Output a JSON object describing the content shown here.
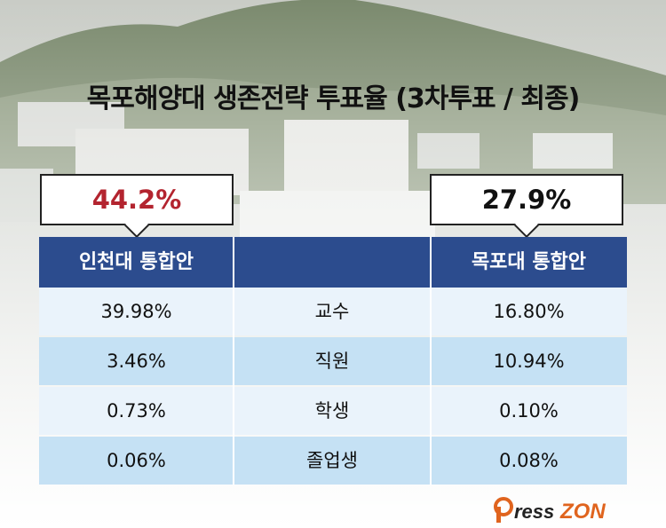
{
  "title": "목포해양대 생존전략 투표율 (3차투표 / 최종)",
  "chart_data": {
    "type": "table",
    "headline_values": {
      "incheon_total": "44.2%",
      "mokpo_total": "27.9%"
    },
    "columns": [
      "인천대 통합안",
      "",
      "목포대 통합안"
    ],
    "rows": [
      {
        "category": "교수",
        "incheon": "39.98%",
        "mokpo": "16.80%"
      },
      {
        "category": "직원",
        "incheon": "3.46%",
        "mokpo": "10.94%"
      },
      {
        "category": "학생",
        "incheon": "0.73%",
        "mokpo": "0.10%"
      },
      {
        "category": "졸업생",
        "incheon": "0.06%",
        "mokpo": "0.08%"
      }
    ]
  },
  "colors": {
    "header_blue": "#2c4c8e",
    "highlight_red": "#b3242f",
    "row_light": "#eaf3fb",
    "row_mid": "#c5e1f4"
  },
  "brand": {
    "logo_text": "PressZON"
  }
}
